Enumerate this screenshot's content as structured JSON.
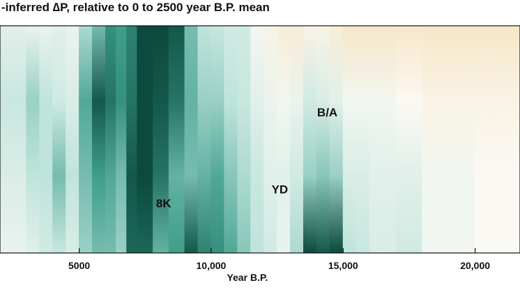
{
  "chart_data": {
    "type": "heatmap",
    "title": "-inferred ∆P, relative to 0 to 2500 year B.P. mean",
    "xlabel": "Year B.P.",
    "ylabel": "",
    "xlim": [
      2000,
      21700
    ],
    "x_ticks": [
      {
        "value": 5000,
        "label": "5000"
      },
      {
        "value": 10000,
        "label": "10,000"
      },
      {
        "value": 15000,
        "label": "15,000"
      },
      {
        "value": 20000,
        "label": "20,000"
      }
    ],
    "annotations": [
      {
        "text": "8K",
        "x": 8200,
        "level": 0.22
      },
      {
        "text": "YD",
        "x": 12600,
        "level": 0.28
      },
      {
        "text": "B/A",
        "x": 14400,
        "level": 0.62
      }
    ],
    "colors": {
      "wet_dark": "#0b4a3d",
      "wet_mid": "#3f9e8b",
      "wet_light": "#bfe4dc",
      "neutral": "#fbf9f4",
      "dry": "#f6e7c8"
    },
    "bands": [
      {
        "x": [
          2000,
          3000
        ],
        "wet": [
          0.15,
          0.3,
          0.2,
          0.1
        ]
      },
      {
        "x": [
          3000,
          3500
        ],
        "wet": [
          0.1,
          0.45,
          0.35,
          0.15
        ]
      },
      {
        "x": [
          3500,
          4000
        ],
        "wet": [
          0.1,
          0.35,
          0.35,
          0.25
        ]
      },
      {
        "x": [
          4000,
          4500
        ],
        "wet": [
          0.15,
          0.25,
          0.55,
          0.3
        ]
      },
      {
        "x": [
          4500,
          5000
        ],
        "wet": [
          0.1,
          0.2,
          0.35,
          0.2
        ]
      },
      {
        "x": [
          5000,
          5500
        ],
        "wet": [
          0.4,
          0.65,
          0.55,
          0.45
        ]
      },
      {
        "x": [
          5500,
          6000
        ],
        "wet": [
          0.55,
          0.95,
          0.7,
          0.55
        ]
      },
      {
        "x": [
          6000,
          6400
        ],
        "wet": [
          0.75,
          0.85,
          0.65,
          0.55
        ]
      },
      {
        "x": [
          6400,
          6800
        ],
        "wet": [
          0.7,
          0.75,
          0.55,
          0.45
        ]
      },
      {
        "x": [
          6800,
          7200
        ],
        "wet": [
          0.8,
          0.85,
          0.95,
          0.9
        ]
      },
      {
        "x": [
          7200,
          7800
        ],
        "wet": [
          1.0,
          1.0,
          1.0,
          0.9
        ]
      },
      {
        "x": [
          7800,
          8400
        ],
        "wet": [
          1.0,
          0.95,
          0.85,
          0.6
        ]
      },
      {
        "x": [
          8400,
          9000
        ],
        "wet": [
          0.95,
          0.85,
          0.6,
          0.7
        ]
      },
      {
        "x": [
          9000,
          9500
        ],
        "wet": [
          0.55,
          0.6,
          0.55,
          0.95
        ]
      },
      {
        "x": [
          9500,
          10000
        ],
        "wet": [
          0.35,
          0.45,
          0.6,
          0.8
        ]
      },
      {
        "x": [
          10000,
          10500
        ],
        "wet": [
          0.3,
          0.45,
          0.65,
          0.75
        ]
      },
      {
        "x": [
          10500,
          11000
        ],
        "wet": [
          0.25,
          0.35,
          0.5,
          0.65
        ]
      },
      {
        "x": [
          11000,
          11500
        ],
        "wet": [
          0.25,
          0.3,
          0.4,
          0.5
        ]
      },
      {
        "x": [
          11500,
          12000
        ],
        "wet": [
          0.05,
          0.15,
          0.3,
          0.35
        ]
      },
      {
        "x": [
          12000,
          12500
        ],
        "wet": [
          -0.05,
          0.1,
          0.15,
          0.25
        ]
      },
      {
        "x": [
          12500,
          13000
        ],
        "wet": [
          -0.1,
          0.05,
          0.15,
          0.1
        ]
      },
      {
        "x": [
          13000,
          13500
        ],
        "wet": [
          -0.1,
          0.1,
          0.25,
          0.4
        ]
      },
      {
        "x": [
          13500,
          14000
        ],
        "wet": [
          -0.05,
          0.25,
          0.45,
          1.0
        ]
      },
      {
        "x": [
          14000,
          14500
        ],
        "wet": [
          -0.05,
          0.2,
          0.5,
          0.95
        ]
      },
      {
        "x": [
          14500,
          15000
        ],
        "wet": [
          -0.1,
          0.15,
          0.45,
          1.0
        ]
      },
      {
        "x": [
          15000,
          15500
        ],
        "wet": [
          -0.15,
          0.05,
          0.2,
          0.35
        ]
      },
      {
        "x": [
          15500,
          16000
        ],
        "wet": [
          -0.15,
          0.05,
          0.2,
          0.3
        ]
      },
      {
        "x": [
          16000,
          17000
        ],
        "wet": [
          -0.15,
          0.05,
          0.15,
          0.2
        ]
      },
      {
        "x": [
          17000,
          18000
        ],
        "wet": [
          -0.15,
          0.0,
          0.15,
          0.25
        ]
      },
      {
        "x": [
          18000,
          20000
        ],
        "wet": [
          -0.15,
          -0.05,
          0.05,
          0.05
        ]
      },
      {
        "x": [
          20000,
          21700
        ],
        "wet": [
          -0.15,
          -0.05,
          0.0,
          0.0
        ]
      }
    ]
  }
}
